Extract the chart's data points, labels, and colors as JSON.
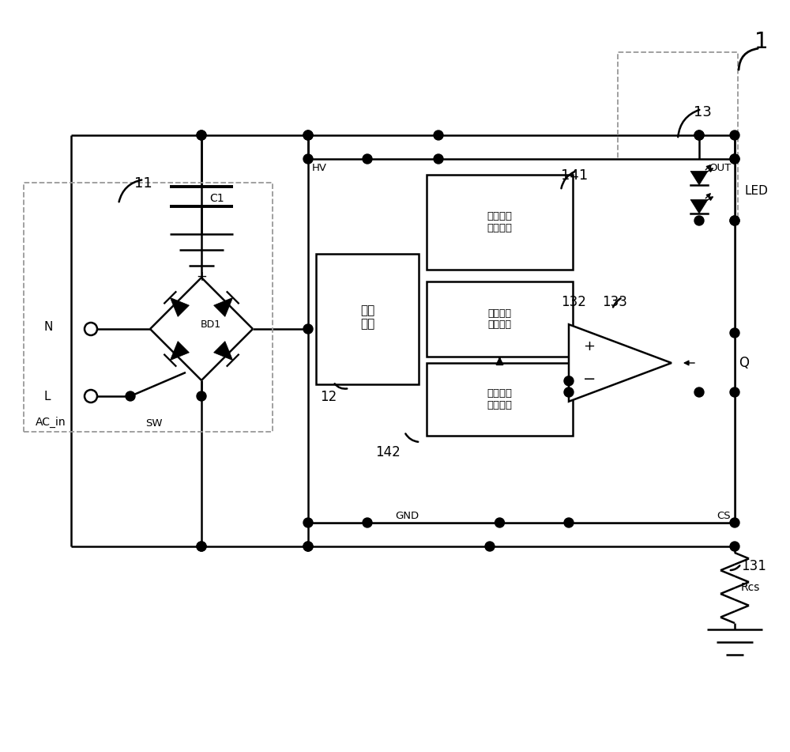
{
  "bg_color": "#ffffff",
  "lc": "#000000",
  "dc": "#999999",
  "label_1": "1",
  "label_11": "11",
  "label_12": "12",
  "label_13": "13",
  "label_131": "131",
  "label_132": "132",
  "label_133": "133",
  "label_141": "141",
  "label_142": "142",
  "label_BD1": "BD1",
  "label_C1": "C1",
  "label_SW": "SW",
  "label_N": "N",
  "label_L": "L",
  "label_ACin": "AC_in",
  "label_HV": "HV",
  "label_GND": "GND",
  "label_OUT": "OUT",
  "label_CS": "CS",
  "label_Q": "Q",
  "label_LED": "LED",
  "label_Rcs": "Rcs",
  "label_power": "供电\n模块",
  "label_unit1": "第一开关\n检测单元",
  "label_ref": "参考电压\n产生单元",
  "label_unit2": "第二开关\n检测单元"
}
